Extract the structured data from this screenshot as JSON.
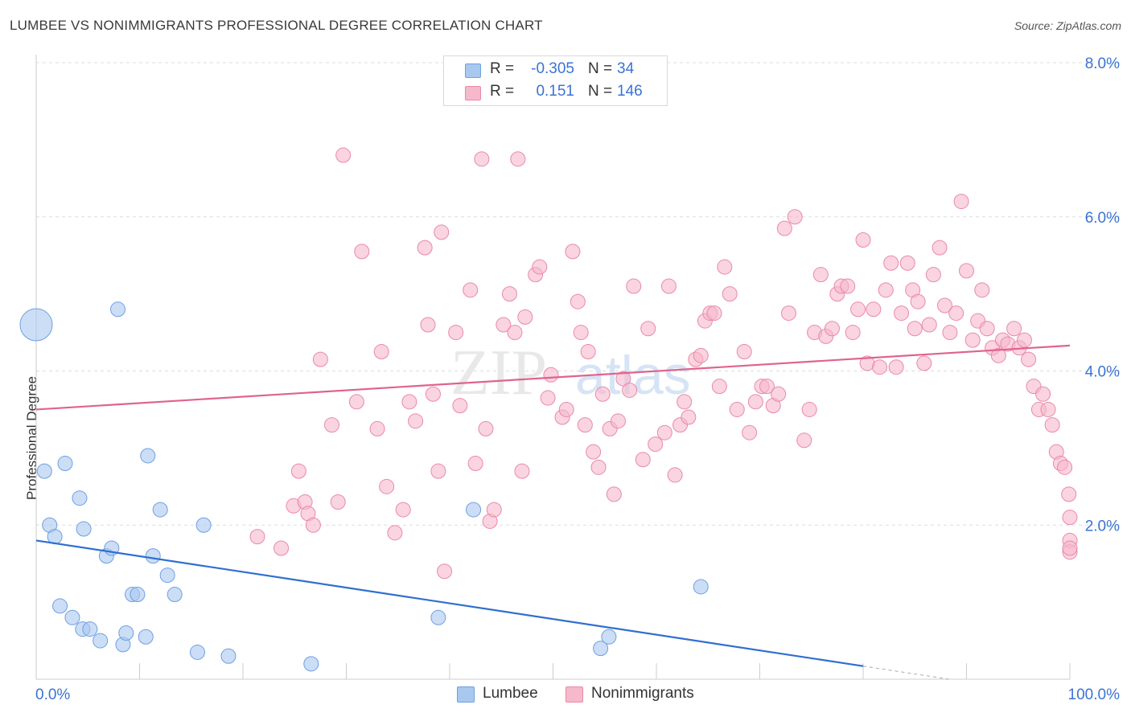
{
  "title": "LUMBEE VS NONIMMIGRANTS PROFESSIONAL DEGREE CORRELATION CHART",
  "source": "Source: ZipAtlas.com",
  "colors": {
    "lumbee_fill": "#a9c8f0",
    "lumbee_stroke": "#6f9fe0",
    "lumbee_line": "#2f6fd0",
    "nonimm_fill": "#f6b8cb",
    "nonimm_stroke": "#e98aa8",
    "nonimm_line": "#e0638f",
    "axis_text": "#3b73d4",
    "grid": "#dddddd"
  },
  "legend": {
    "rows": [
      {
        "r_label": "R =",
        "r_value": "-0.305",
        "n_label": "N =",
        "n_value": "34"
      },
      {
        "r_label": "R =",
        "r_value": "0.151",
        "n_label": "N =",
        "n_value": "146"
      }
    ]
  },
  "bottom_legend": {
    "items": [
      "Lumbee",
      "Nonimmigrants"
    ]
  },
  "chart_data": {
    "type": "scatter",
    "title": "LUMBEE VS NONIMMIGRANTS PROFESSIONAL DEGREE CORRELATION CHART",
    "xlabel": "",
    "ylabel": "Professional Degree",
    "xlim": [
      0,
      100
    ],
    "ylim": [
      0,
      8.0
    ],
    "x_tick_labels": [
      "0.0%",
      "100.0%"
    ],
    "y_ticks": [
      2.0,
      4.0,
      6.0,
      8.0
    ],
    "y_tick_labels": [
      "2.0%",
      "4.0%",
      "6.0%",
      "8.0%"
    ],
    "grid": true,
    "series": [
      {
        "name": "Lumbee",
        "r": -0.305,
        "n": 34,
        "trend": {
          "x0": 0,
          "y0": 1.8,
          "x1": 80,
          "y1": 0.17,
          "dash_to": {
            "x": 100,
            "y": -0.25
          }
        },
        "points": [
          [
            0,
            4.6,
            "big"
          ],
          [
            0.8,
            2.7
          ],
          [
            1.3,
            2.0
          ],
          [
            1.8,
            1.85
          ],
          [
            2.3,
            0.95
          ],
          [
            2.8,
            2.8
          ],
          [
            3.5,
            0.8
          ],
          [
            4.2,
            2.35
          ],
          [
            4.5,
            0.65
          ],
          [
            4.6,
            1.95
          ],
          [
            5.2,
            0.65
          ],
          [
            6.2,
            0.5
          ],
          [
            6.8,
            1.6
          ],
          [
            7.3,
            1.7
          ],
          [
            7.9,
            4.8
          ],
          [
            8.4,
            0.45
          ],
          [
            8.7,
            0.6
          ],
          [
            9.3,
            1.1
          ],
          [
            9.8,
            1.1
          ],
          [
            10.6,
            0.55
          ],
          [
            10.8,
            2.9
          ],
          [
            11.3,
            1.6
          ],
          [
            12.0,
            2.2
          ],
          [
            12.7,
            1.35
          ],
          [
            13.4,
            1.1
          ],
          [
            15.6,
            0.35
          ],
          [
            16.2,
            2.0
          ],
          [
            18.6,
            0.3
          ],
          [
            26.6,
            0.2
          ],
          [
            38.9,
            0.8
          ],
          [
            42.3,
            2.2
          ],
          [
            54.6,
            0.4
          ],
          [
            55.4,
            0.55
          ],
          [
            64.3,
            1.2
          ]
        ]
      },
      {
        "name": "Nonimmigrants",
        "r": 0.151,
        "n": 146,
        "trend": {
          "x0": 0,
          "y0": 3.5,
          "x1": 100,
          "y1": 4.33
        },
        "points": [
          [
            21.4,
            1.85
          ],
          [
            23.7,
            1.7
          ],
          [
            24.9,
            2.25
          ],
          [
            25.4,
            2.7
          ],
          [
            26.0,
            2.3
          ],
          [
            26.3,
            2.15
          ],
          [
            26.8,
            2.0
          ],
          [
            27.5,
            4.15
          ],
          [
            28.6,
            3.3
          ],
          [
            29.2,
            2.3
          ],
          [
            29.7,
            6.8
          ],
          [
            31.0,
            3.6
          ],
          [
            31.5,
            5.55
          ],
          [
            33.0,
            3.25
          ],
          [
            33.4,
            4.25
          ],
          [
            33.9,
            2.5
          ],
          [
            34.7,
            1.9
          ],
          [
            35.5,
            2.2
          ],
          [
            36.1,
            3.6
          ],
          [
            36.7,
            3.35
          ],
          [
            37.6,
            5.6
          ],
          [
            37.9,
            4.6
          ],
          [
            38.4,
            3.7
          ],
          [
            38.9,
            2.7
          ],
          [
            39.2,
            5.8
          ],
          [
            39.5,
            1.4
          ],
          [
            40.1,
            7.9
          ],
          [
            40.6,
            4.5
          ],
          [
            41.0,
            3.55
          ],
          [
            42.0,
            5.05
          ],
          [
            42.5,
            2.8
          ],
          [
            43.1,
            6.75
          ],
          [
            43.5,
            3.25
          ],
          [
            43.9,
            2.05
          ],
          [
            44.3,
            2.2
          ],
          [
            45.2,
            4.6
          ],
          [
            45.8,
            5.0
          ],
          [
            46.3,
            4.5
          ],
          [
            46.6,
            6.75
          ],
          [
            47.0,
            2.7
          ],
          [
            47.3,
            4.7
          ],
          [
            48.3,
            5.25
          ],
          [
            48.7,
            5.35
          ],
          [
            49.5,
            3.65
          ],
          [
            49.8,
            3.95
          ],
          [
            50.9,
            3.4
          ],
          [
            51.3,
            3.5
          ],
          [
            51.9,
            5.55
          ],
          [
            52.4,
            4.9
          ],
          [
            52.7,
            4.5
          ],
          [
            53.1,
            3.3
          ],
          [
            53.4,
            4.25
          ],
          [
            53.9,
            2.95
          ],
          [
            54.4,
            2.75
          ],
          [
            54.8,
            3.7
          ],
          [
            55.5,
            3.25
          ],
          [
            55.9,
            2.4
          ],
          [
            56.3,
            3.35
          ],
          [
            56.8,
            3.9
          ],
          [
            57.4,
            3.75
          ],
          [
            57.8,
            5.1
          ],
          [
            58.7,
            2.85
          ],
          [
            59.2,
            4.55
          ],
          [
            59.9,
            3.05
          ],
          [
            60.8,
            3.2
          ],
          [
            61.2,
            5.1
          ],
          [
            61.8,
            2.65
          ],
          [
            62.3,
            3.3
          ],
          [
            62.7,
            3.6
          ],
          [
            63.1,
            3.4
          ],
          [
            63.8,
            4.15
          ],
          [
            64.3,
            4.2
          ],
          [
            64.7,
            4.65
          ],
          [
            65.2,
            4.75
          ],
          [
            65.6,
            4.75
          ],
          [
            66.1,
            3.8
          ],
          [
            66.6,
            5.35
          ],
          [
            67.1,
            5.0
          ],
          [
            67.8,
            3.5
          ],
          [
            68.5,
            4.25
          ],
          [
            69.0,
            3.2
          ],
          [
            69.6,
            3.6
          ],
          [
            70.2,
            3.8
          ],
          [
            70.7,
            3.8
          ],
          [
            71.3,
            3.55
          ],
          [
            71.8,
            3.7
          ],
          [
            72.4,
            5.85
          ],
          [
            72.8,
            4.75
          ],
          [
            73.4,
            6.0
          ],
          [
            74.3,
            3.1
          ],
          [
            74.8,
            3.5
          ],
          [
            75.3,
            4.5
          ],
          [
            75.9,
            5.25
          ],
          [
            76.4,
            4.45
          ],
          [
            77.0,
            4.55
          ],
          [
            77.5,
            5.0
          ],
          [
            77.9,
            5.1
          ],
          [
            78.5,
            5.1
          ],
          [
            79.0,
            4.5
          ],
          [
            79.5,
            4.8
          ],
          [
            80.0,
            5.7
          ],
          [
            80.4,
            4.1
          ],
          [
            81.0,
            4.8
          ],
          [
            81.6,
            4.05
          ],
          [
            82.2,
            5.05
          ],
          [
            82.7,
            5.4
          ],
          [
            83.2,
            4.05
          ],
          [
            83.7,
            4.75
          ],
          [
            84.3,
            5.4
          ],
          [
            84.8,
            5.05
          ],
          [
            85.3,
            4.9
          ],
          [
            85.9,
            4.1
          ],
          [
            86.4,
            4.6
          ],
          [
            86.8,
            5.25
          ],
          [
            87.4,
            5.6
          ],
          [
            87.9,
            4.85
          ],
          [
            88.4,
            4.5
          ],
          [
            89.0,
            4.75
          ],
          [
            89.5,
            6.2
          ],
          [
            90.0,
            5.3
          ],
          [
            90.6,
            4.4
          ],
          [
            91.1,
            4.65
          ],
          [
            91.5,
            5.05
          ],
          [
            92.0,
            4.55
          ],
          [
            92.5,
            4.3
          ],
          [
            93.1,
            4.2
          ],
          [
            93.5,
            4.4
          ],
          [
            94.0,
            4.35
          ],
          [
            94.6,
            4.55
          ],
          [
            95.1,
            4.3
          ],
          [
            95.6,
            4.4
          ],
          [
            96.0,
            4.15
          ],
          [
            96.5,
            3.8
          ],
          [
            97.0,
            3.5
          ],
          [
            97.4,
            3.7
          ],
          [
            97.9,
            3.5
          ],
          [
            98.3,
            3.3
          ],
          [
            98.7,
            2.95
          ],
          [
            99.1,
            2.8
          ],
          [
            99.5,
            2.75
          ],
          [
            99.9,
            2.4
          ],
          [
            100.2,
            2.1
          ],
          [
            100.6,
            1.8
          ],
          [
            101.0,
            1.65
          ],
          [
            101.4,
            1.7
          ],
          [
            85.0,
            4.55
          ]
        ]
      }
    ]
  }
}
